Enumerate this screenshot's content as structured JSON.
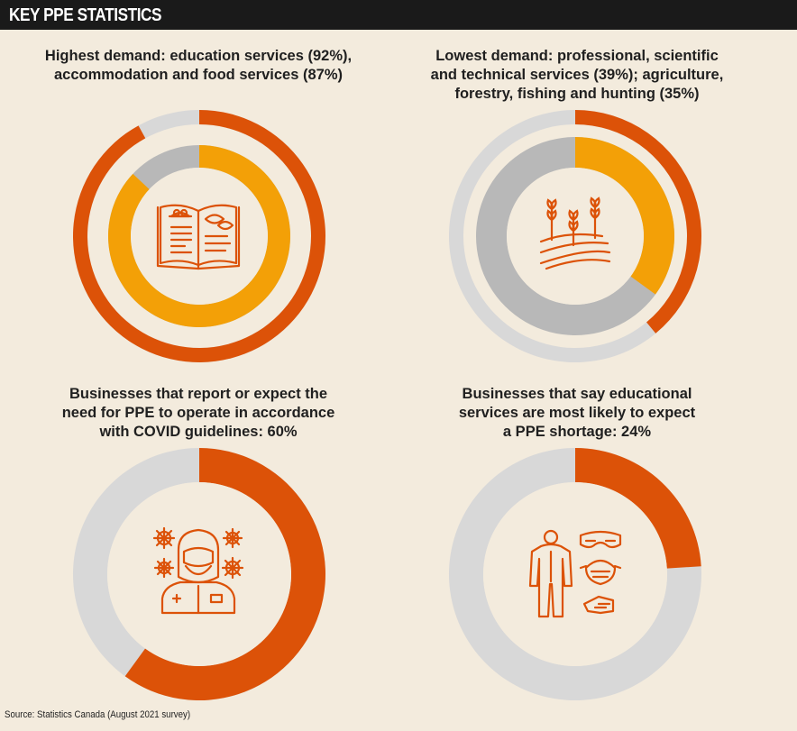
{
  "header": {
    "title": "KEY PPE STATISTICS"
  },
  "source": "Source: Statistics Canada (August 2021 survey)",
  "colors": {
    "orange_dark": "#dc5208",
    "orange_light": "#f3a007",
    "gray_light": "#d8d8d8",
    "gray_mid": "#b8b8b8",
    "icon": "#dc5208"
  },
  "chart_data": [
    {
      "type": "pie",
      "title_lines": [
        "Highest demand: education services (92%),",
        "accommodation and food services (87%)"
      ],
      "rings": [
        {
          "ring": "outer",
          "value": 92,
          "color": "#dc5208"
        },
        {
          "ring": "inner",
          "value": 87,
          "color": "#f3a007"
        }
      ],
      "icon": "recipe-book-icon"
    },
    {
      "type": "pie",
      "title_lines": [
        "Lowest demand: professional, scientific",
        "and technical services (39%); agriculture,",
        "forestry, fishing and hunting (35%)"
      ],
      "rings": [
        {
          "ring": "outer",
          "value": 39,
          "color": "#dc5208"
        },
        {
          "ring": "inner",
          "value": 35,
          "color": "#f3a007"
        }
      ],
      "icon": "farm-field-icon"
    },
    {
      "type": "pie",
      "title_lines": [
        "Businesses that report or expect the",
        "need for PPE to operate in accordance",
        "with COVID guidelines: 60%"
      ],
      "rings": [
        {
          "ring": "single",
          "value": 60,
          "color": "#dc5208"
        }
      ],
      "icon": "doctor-with-virus-icon"
    },
    {
      "type": "pie",
      "title_lines": [
        "Businesses that say educational",
        "services are most likely to expect",
        "a PPE shortage: 24%"
      ],
      "rings": [
        {
          "ring": "single",
          "value": 24,
          "color": "#dc5208"
        }
      ],
      "icon": "ppe-equipment-icon"
    }
  ]
}
